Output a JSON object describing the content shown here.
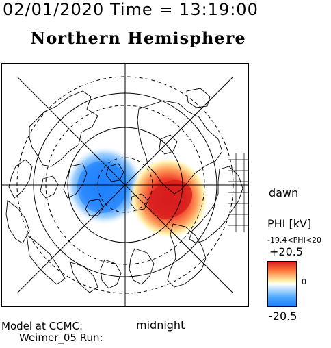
{
  "header": {
    "datetime": "02/01/2020 Time = 13:19:00",
    "title": "Northern Hemisphere"
  },
  "map": {
    "projection": "polar-stereographic",
    "pole": "north",
    "dashed_rings": 3,
    "solid_rings": 2,
    "meridian_lines": 8,
    "potential_cells": [
      {
        "name": "negative",
        "color": "#1e7fff"
      },
      {
        "name": "positive",
        "color": "#d71d1d"
      }
    ]
  },
  "labels": {
    "dawn": "dawn",
    "midnight": "midnight",
    "model": "Model at CCMC:",
    "run": "Weimer_05 Run:"
  },
  "colorbar": {
    "title": "PHI [kV]",
    "range_text": "-19.4<PHI<20",
    "max_label": "+20.5",
    "mid_label": "0",
    "min_label": "-20.5",
    "colors": [
      "#d71d1d",
      "#ff7a3a",
      "#fff7b8",
      "#ffffff",
      "#cfe8ff",
      "#4aa7ff",
      "#1e7fff"
    ]
  }
}
